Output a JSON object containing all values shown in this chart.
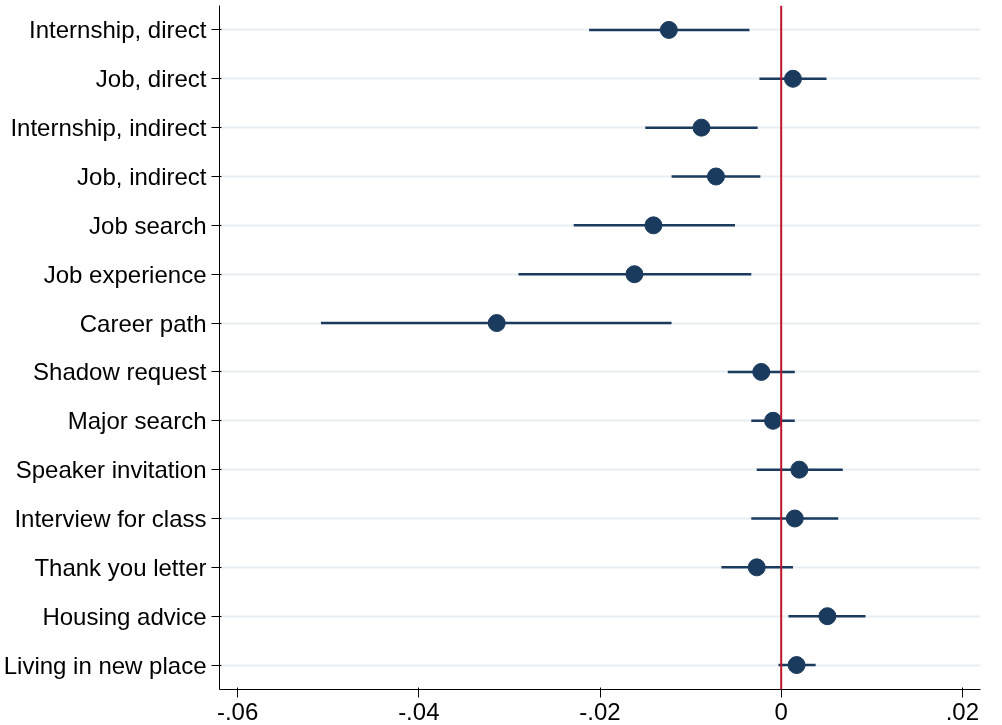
{
  "chart_data": {
    "type": "scatter",
    "orientation": "horizontal",
    "categories": [
      "Internship, direct",
      "Job, direct",
      "Internship, indirect",
      "Job, indirect",
      "Job search",
      "Job experience",
      "Career path",
      "Shadow request",
      "Major search",
      "Speaker invitation",
      "Interview for class",
      "Thank you letter",
      "Housing advice",
      "Living in new place"
    ],
    "series": [
      {
        "color": "#1a3a5e",
        "values": [
          -0.0124,
          0.0013,
          -0.0088,
          -0.0072,
          -0.0141,
          -0.0162,
          -0.0314,
          -0.0022,
          -0.0009,
          0.002,
          0.0015,
          -0.0027,
          0.0051,
          0.0017
        ],
        "errors": [
          [
            -0.0212,
            -0.0035
          ],
          [
            -0.0024,
            0.005
          ],
          [
            -0.015,
            -0.0026
          ],
          [
            -0.0121,
            -0.0023
          ],
          [
            -0.0229,
            -0.0051
          ],
          [
            -0.029,
            -0.0033
          ],
          [
            -0.0508,
            -0.0121
          ],
          [
            -0.0059,
            0.0015
          ],
          [
            -0.0033,
            0.0015
          ],
          [
            -0.0027,
            0.0068
          ],
          [
            -0.0033,
            0.0063
          ],
          [
            -0.0066,
            0.0013
          ],
          [
            0.0008,
            0.0093
          ],
          [
            -0.0003,
            0.0038
          ]
        ]
      }
    ],
    "xlim": [
      -0.062,
      0.022
    ],
    "xticks": [
      {
        "value": -0.06,
        "label": "-.06"
      },
      {
        "value": -0.04,
        "label": "-.04"
      },
      {
        "value": -0.02,
        "label": "-.02"
      },
      0,
      {
        "value": 0.02,
        "label": ".02"
      }
    ],
    "ref_lines": [
      {
        "axis": "x",
        "value": 0,
        "color": "#c0142c"
      }
    ],
    "grid": "y",
    "marker": "circle"
  }
}
